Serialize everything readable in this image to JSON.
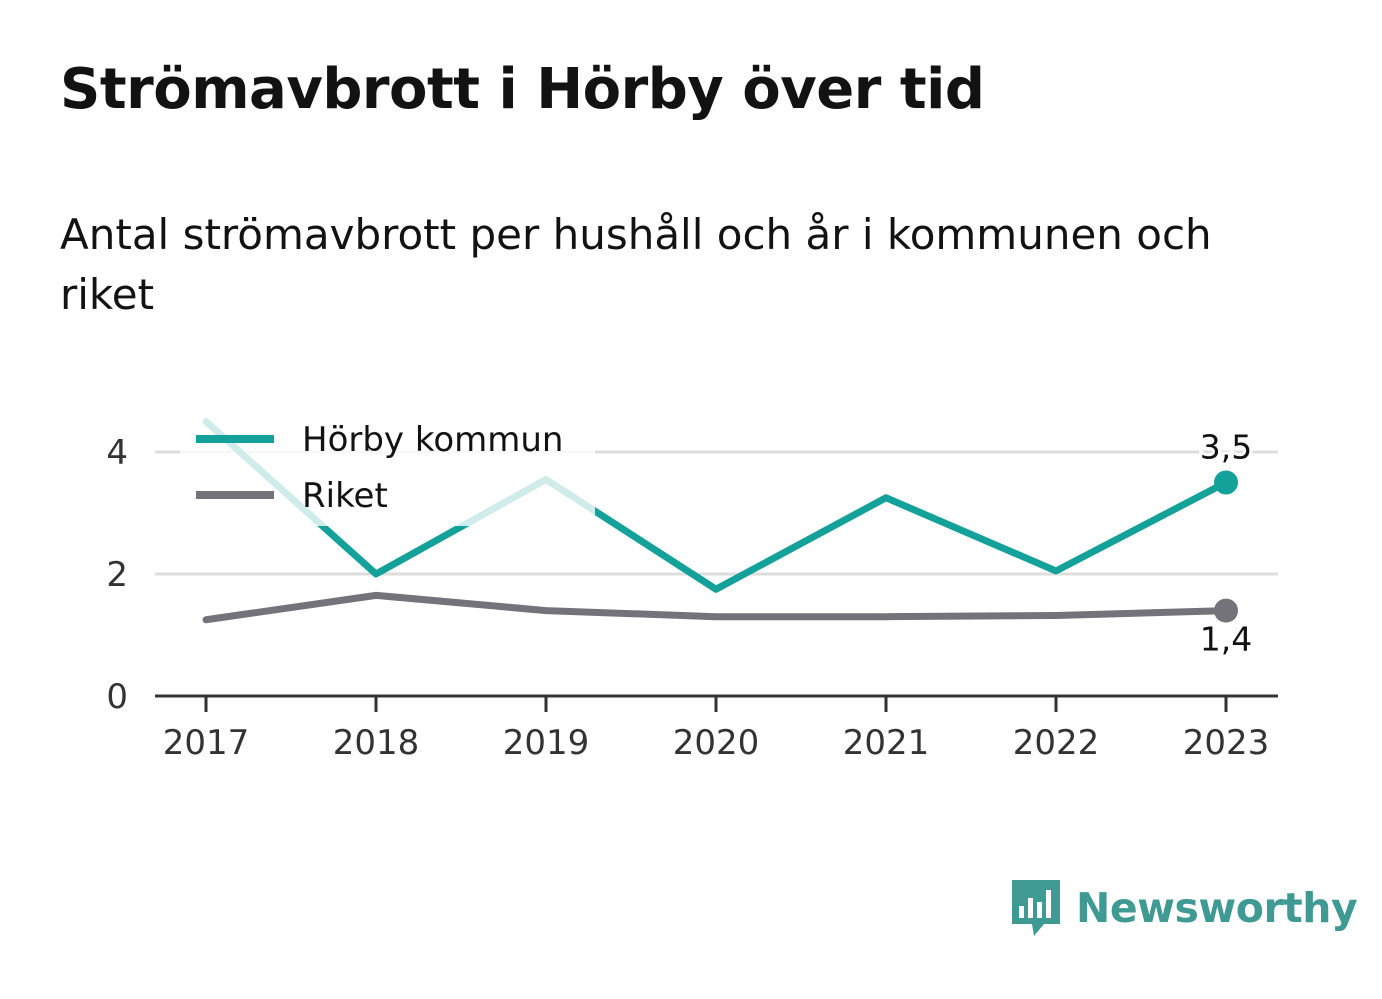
{
  "title": "Strömavbrott i Hörby över tid",
  "subtitle": "Antal strömavbrott per hushåll och år i kommunen och riket",
  "brand": {
    "name": "Newsworthy",
    "icon": "newsworthy-logo-icon",
    "color": "#3f9a93"
  },
  "chart_data": {
    "type": "line",
    "x": [
      "2017",
      "2018",
      "2019",
      "2020",
      "2021",
      "2022",
      "2023"
    ],
    "ylim": [
      0,
      4.6
    ],
    "yticks": [
      0,
      2,
      4
    ],
    "grid": true,
    "legend_position": "top-left",
    "series": [
      {
        "name": "Hörby kommun",
        "color": "#13a199",
        "values": [
          4.5,
          2.0,
          3.55,
          1.75,
          3.25,
          2.05,
          3.5
        ],
        "end_label": "3,5"
      },
      {
        "name": "Riket",
        "color": "#74737a",
        "values": [
          1.25,
          1.65,
          1.4,
          1.3,
          1.3,
          1.32,
          1.4
        ],
        "end_label": "1,4"
      }
    ]
  }
}
